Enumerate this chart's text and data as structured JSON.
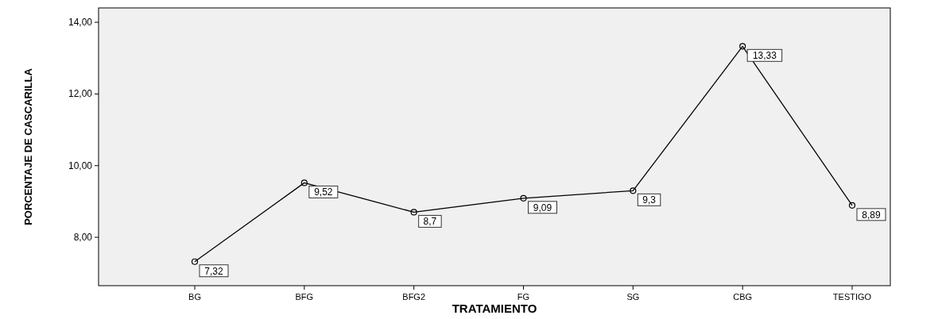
{
  "chart_data": {
    "type": "line",
    "xlabel": "TRATAMIENTO",
    "ylabel": "PORCENTAJE DE CASCARILLA",
    "categories": [
      "BG",
      "BFG",
      "BFG2",
      "FG",
      "SG",
      "CBG",
      "TESTIGO"
    ],
    "series": [
      {
        "color": "#000000",
        "values": [
          7.32,
          9.52,
          8.7,
          9.09,
          9.3,
          13.33,
          8.89
        ],
        "value_labels": [
          "7,32",
          "9,52",
          "8,7",
          "9,09",
          "9,3",
          "13,33",
          "8,89"
        ]
      }
    ],
    "ylim": [
      6.65,
      14.4
    ],
    "yticks": [
      {
        "value": 8,
        "label": "8,00"
      },
      {
        "value": 10,
        "label": "10,00"
      },
      {
        "value": 12,
        "label": "12,00"
      },
      {
        "value": 14,
        "label": "14,00"
      }
    ],
    "marker": "circle",
    "line_style": "solid",
    "grid": false
  }
}
